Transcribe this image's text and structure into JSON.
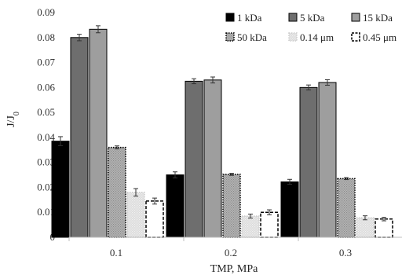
{
  "chart_data": {
    "type": "bar",
    "categories": [
      "0.1",
      "0.2",
      "0.3"
    ],
    "xlabel": "TMP, MPa",
    "ylabel": "J/J",
    "ylabel_subscript": "0",
    "ylim": [
      0,
      0.09
    ],
    "yticks": [
      "0",
      "0.01",
      "0.02",
      "0.03",
      "0.04",
      "0.05",
      "0.06",
      "0.07",
      "0.08",
      "0.09"
    ],
    "legend_position": "top-right",
    "series": [
      {
        "name": "1 kDa",
        "values": [
          0.0385,
          0.025,
          0.0222
        ],
        "errors": [
          0.0018,
          0.0012,
          0.001
        ],
        "fill": "#000000",
        "stroke": "#000000",
        "pattern": "solid"
      },
      {
        "name": "5 kDa",
        "values": [
          0.08,
          0.0625,
          0.06
        ],
        "errors": [
          0.0013,
          0.001,
          0.001
        ],
        "fill": "#6e6e6e",
        "stroke": "#000000",
        "pattern": "solid"
      },
      {
        "name": "15 kDa",
        "values": [
          0.0833,
          0.063,
          0.062
        ],
        "errors": [
          0.0014,
          0.0012,
          0.0011
        ],
        "fill": "#9e9e9e",
        "stroke": "#000000",
        "pattern": "solid"
      },
      {
        "name": "50 kDa",
        "values": [
          0.036,
          0.0252,
          0.0235
        ],
        "errors": [
          0.0006,
          0.0004,
          0.0004
        ],
        "fill": "#b5b5b5",
        "stroke": "#000000",
        "pattern": "dotted"
      },
      {
        "name": "0.14 μm",
        "values": [
          0.018,
          0.0085,
          0.0078
        ],
        "errors": [
          0.0015,
          0.0008,
          0.0008
        ],
        "fill": "#dcdcdc",
        "stroke": "#cccccc",
        "pattern": "dotted"
      },
      {
        "name": "0.45 μm",
        "values": [
          0.0145,
          0.01,
          0.0073
        ],
        "errors": [
          0.0012,
          0.001,
          0.0007
        ],
        "fill": "#ffffff",
        "stroke": "#000000",
        "pattern": "dashed"
      }
    ]
  }
}
